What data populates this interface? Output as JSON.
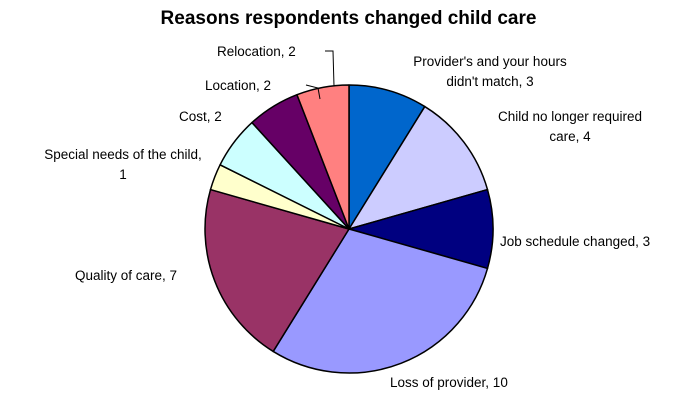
{
  "chart_data": {
    "type": "pie",
    "title": "Reasons respondents changed child care",
    "legend": "none",
    "slices": [
      {
        "label": "Provider's and your hours didn't match",
        "value": 3,
        "label_text": [
          "Provider's and your hours",
          "didn't match, 3"
        ],
        "color": "#0066CC"
      },
      {
        "label": "Child no longer required care",
        "value": 4,
        "label_text": [
          "Child no longer required",
          "care, 4"
        ],
        "color": "#CCCCFF"
      },
      {
        "label": "Job schedule changed",
        "value": 3,
        "label_text": [
          "Job schedule changed, 3"
        ],
        "color": "#000080"
      },
      {
        "label": "Loss of provider",
        "value": 10,
        "label_text": [
          "Loss of provider, 10"
        ],
        "color": "#9999FF"
      },
      {
        "label": "Quality of care",
        "value": 7,
        "label_text": [
          "Quality of care, 7"
        ],
        "color": "#993366"
      },
      {
        "label": "Special needs of the child",
        "value": 1,
        "label_text": [
          "Special needs of the child,",
          "1"
        ],
        "color": "#FFFFCC"
      },
      {
        "label": "Cost",
        "value": 2,
        "label_text": [
          "Cost, 2"
        ],
        "color": "#CCFFFF"
      },
      {
        "label": "Location",
        "value": 2,
        "label_text": [
          "Location, 2"
        ],
        "color": "#660066"
      },
      {
        "label": "Relocation",
        "value": 2,
        "label_text": [
          "Relocation, 2"
        ],
        "color": "#FF8080"
      }
    ]
  }
}
